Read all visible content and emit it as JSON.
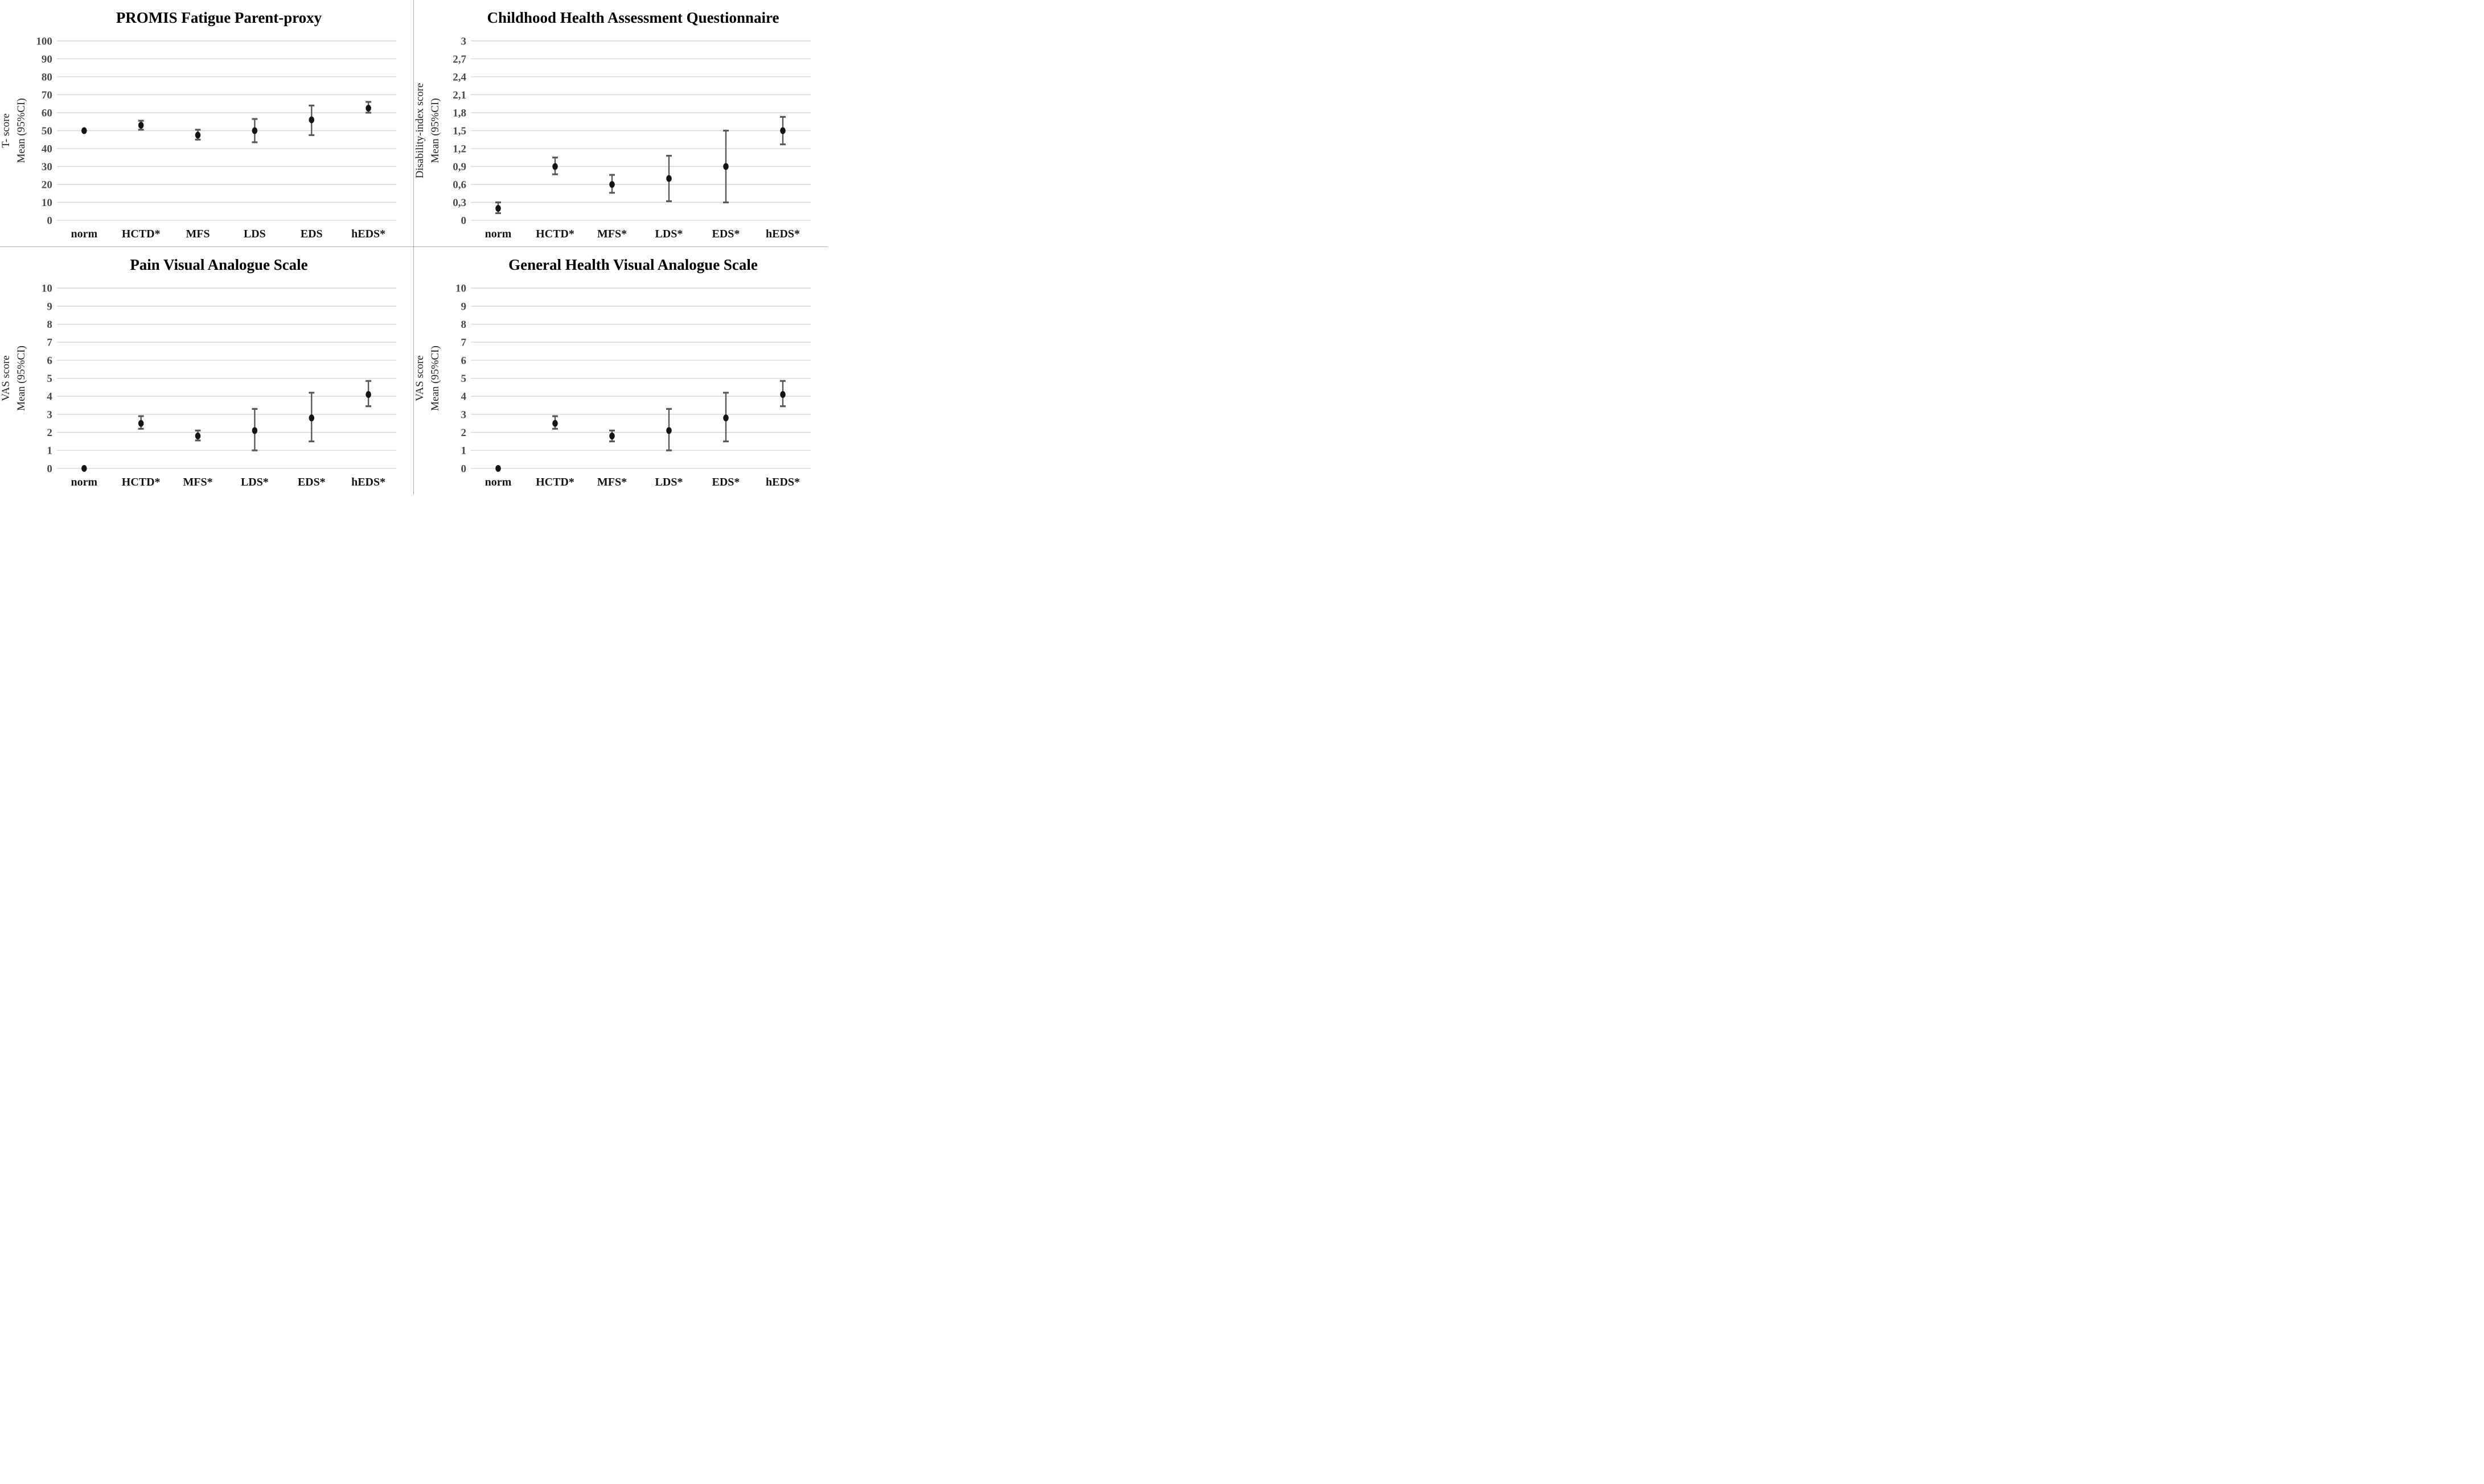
{
  "figure": {
    "background": "#ffffff",
    "divider_color": "#ababab",
    "grid_color": "#d2d2d2",
    "marker_color": "#141414",
    "whisker_color": "#595959",
    "tick_color": "#4a4a4a",
    "category_color": "#141414",
    "title_color": "#000000",
    "axis_label_color": "#222222"
  },
  "chart_data": [
    {
      "type": "scatter",
      "title": "PROMIS Fatigue Parent-proxy",
      "ylabel_lines": [
        "T- score",
        "Mean (95%CI)"
      ],
      "categories": [
        "norm",
        "HCTD*",
        "MFS",
        "LDS",
        "EDS",
        "hEDS*"
      ],
      "series": [
        {
          "name": "Mean (95%CI)",
          "values": [
            50,
            53,
            47.5,
            50,
            56,
            62.5
          ],
          "ci_low": [
            50,
            50.5,
            45,
            43.5,
            47.5,
            60
          ],
          "ci_high": [
            50,
            55.5,
            50.5,
            56.5,
            64,
            66
          ]
        }
      ],
      "ylim": [
        0,
        100
      ],
      "yticks": [
        0,
        10,
        20,
        30,
        40,
        50,
        60,
        70,
        80,
        90,
        100
      ],
      "ytick_labels": [
        "0",
        "10",
        "20",
        "30",
        "40",
        "50",
        "60",
        "70",
        "80",
        "90",
        "100"
      ],
      "grid": true,
      "legend": "none"
    },
    {
      "type": "scatter",
      "title": "Childhood Health Assessment Questionnaire",
      "ylabel_lines": [
        "Disability-index score",
        "Mean (95%CI)"
      ],
      "categories": [
        "norm",
        "HCTD*",
        "MFS*",
        "LDS*",
        "EDS*",
        "hEDS*"
      ],
      "series": [
        {
          "name": "Mean (95%CI)",
          "values": [
            0.2,
            0.9,
            0.6,
            0.7,
            0.9,
            1.5
          ],
          "ci_low": [
            0.12,
            0.77,
            0.46,
            0.32,
            0.3,
            1.27
          ],
          "ci_high": [
            0.3,
            1.05,
            0.76,
            1.08,
            1.5,
            1.73
          ]
        }
      ],
      "ylim": [
        0,
        3
      ],
      "yticks": [
        0,
        0.3,
        0.6,
        0.9,
        1.2,
        1.5,
        1.8,
        2.1,
        2.4,
        2.7,
        3
      ],
      "ytick_labels": [
        "0",
        "0,3",
        "0,6",
        "0,9",
        "1,2",
        "1,5",
        "1,8",
        "2,1",
        "2,4",
        "2,7",
        "3"
      ],
      "grid": true,
      "legend": "none"
    },
    {
      "type": "scatter",
      "title": "Pain Visual Analogue Scale",
      "ylabel_lines": [
        "VAS score",
        "Mean (95%CI)"
      ],
      "categories": [
        "norm",
        "HCTD*",
        "MFS*",
        "LDS*",
        "EDS*",
        "hEDS*"
      ],
      "series": [
        {
          "name": "Mean (95%CI)",
          "values": [
            0,
            2.5,
            1.8,
            2.1,
            2.8,
            4.1
          ],
          "ci_low": [
            0,
            2.2,
            1.55,
            1.0,
            1.5,
            3.45
          ],
          "ci_high": [
            0,
            2.9,
            2.1,
            3.3,
            4.2,
            4.85
          ]
        }
      ],
      "ylim": [
        0,
        10
      ],
      "yticks": [
        0,
        1,
        2,
        3,
        4,
        5,
        6,
        7,
        8,
        9,
        10
      ],
      "ytick_labels": [
        "0",
        "1",
        "2",
        "3",
        "4",
        "5",
        "6",
        "7",
        "8",
        "9",
        "10"
      ],
      "grid": true,
      "legend": "none"
    },
    {
      "type": "scatter",
      "title": "General Health Visual Analogue Scale",
      "ylabel_lines": [
        "VAS score",
        "Mean (95%CI)"
      ],
      "categories": [
        "norm",
        "HCTD*",
        "MFS*",
        "LDS*",
        "EDS*",
        "hEDS*"
      ],
      "series": [
        {
          "name": "Mean (95%CI)",
          "values": [
            0,
            2.5,
            1.8,
            2.1,
            2.8,
            4.1
          ],
          "ci_low": [
            0,
            2.2,
            1.5,
            1.0,
            1.5,
            3.45
          ],
          "ci_high": [
            0,
            2.9,
            2.1,
            3.3,
            4.2,
            4.85
          ]
        }
      ],
      "ylim": [
        0,
        10
      ],
      "yticks": [
        0,
        1,
        2,
        3,
        4,
        5,
        6,
        7,
        8,
        9,
        10
      ],
      "ytick_labels": [
        "0",
        "1",
        "2",
        "3",
        "4",
        "5",
        "6",
        "7",
        "8",
        "9",
        "10"
      ],
      "grid": true,
      "legend": "none"
    }
  ]
}
